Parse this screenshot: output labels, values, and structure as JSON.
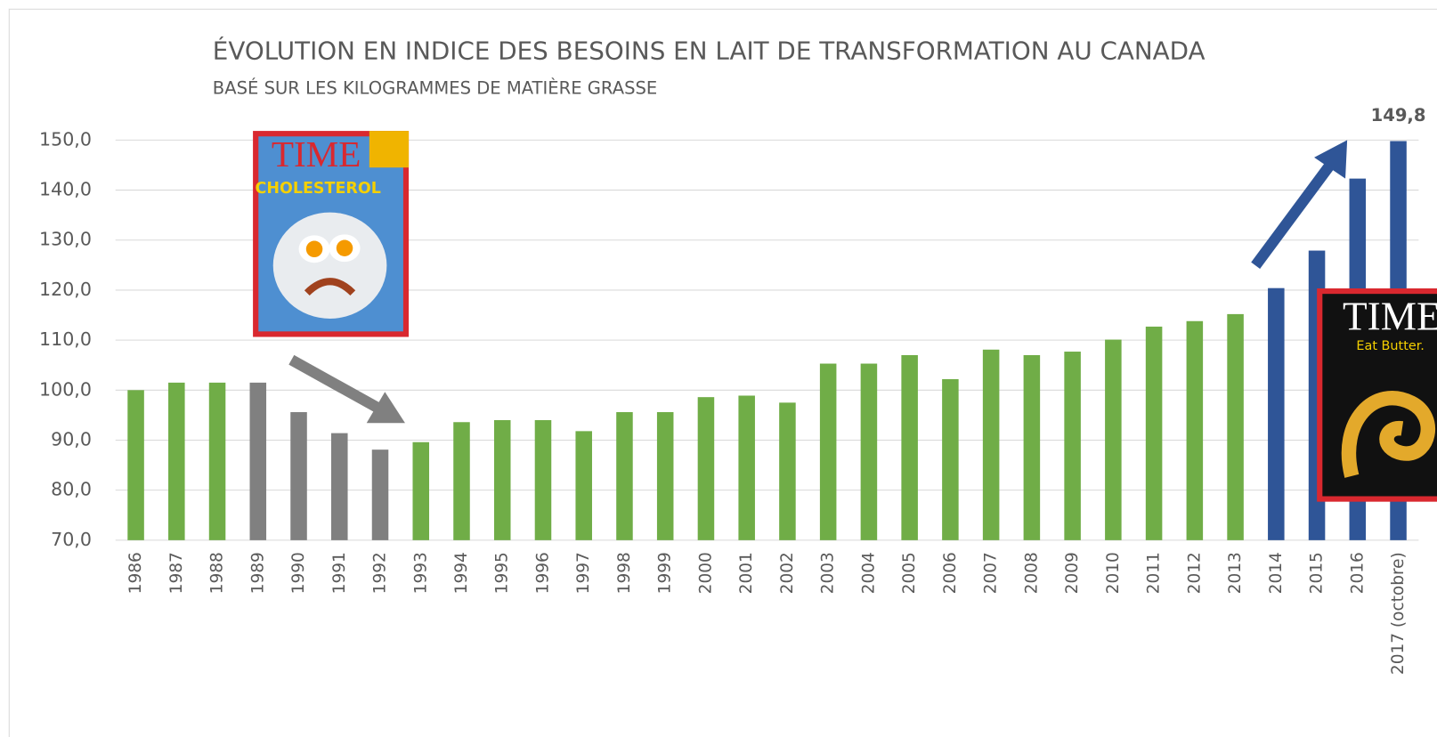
{
  "chart_data": {
    "type": "bar",
    "title": "ÉVOLUTION EN INDICE DES BESOINS EN LAIT DE TRANSFORMATION AU CANADA",
    "subtitle": "BASÉ SUR LES KILOGRAMMES  DE MATIÈRE GRASSE",
    "categories": [
      "1986",
      "1987",
      "1988",
      "1989",
      "1990",
      "1991",
      "1992",
      "1993",
      "1994",
      "1995",
      "1996",
      "1997",
      "1998",
      "1999",
      "2000",
      "2001",
      "2002",
      "2003",
      "2004",
      "2005",
      "2006",
      "2007",
      "2008",
      "2009",
      "2010",
      "2011",
      "2012",
      "2013",
      "2014",
      "2015",
      "2016",
      "2017 (octobre)"
    ],
    "values": [
      100.0,
      101.5,
      101.5,
      101.5,
      95.6,
      91.4,
      88.1,
      89.6,
      93.6,
      94.0,
      94.0,
      91.8,
      95.6,
      95.6,
      98.6,
      98.9,
      97.5,
      105.3,
      105.3,
      107.0,
      102.2,
      108.1,
      107.0,
      107.7,
      110.1,
      112.7,
      113.8,
      115.2,
      120.4,
      127.9,
      142.3,
      149.8
    ],
    "value_labels": [
      null,
      null,
      null,
      null,
      null,
      null,
      null,
      null,
      null,
      null,
      null,
      null,
      null,
      null,
      null,
      null,
      null,
      null,
      null,
      null,
      null,
      null,
      null,
      null,
      null,
      null,
      null,
      null,
      null,
      null,
      null,
      "149,8"
    ],
    "colors": [
      "#70ad47",
      "#70ad47",
      "#70ad47",
      "#808080",
      "#808080",
      "#808080",
      "#808080",
      "#70ad47",
      "#70ad47",
      "#70ad47",
      "#70ad47",
      "#70ad47",
      "#70ad47",
      "#70ad47",
      "#70ad47",
      "#70ad47",
      "#70ad47",
      "#70ad47",
      "#70ad47",
      "#70ad47",
      "#70ad47",
      "#70ad47",
      "#70ad47",
      "#70ad47",
      "#70ad47",
      "#70ad47",
      "#70ad47",
      "#70ad47",
      "#2f5597",
      "#2f5597",
      "#2f5597",
      "#2f5597"
    ],
    "ylim": [
      70,
      150
    ],
    "yticks": [
      {
        "value": 70,
        "label": "70,0"
      },
      {
        "value": 80,
        "label": "80,0"
      },
      {
        "value": 90,
        "label": "90,0"
      },
      {
        "value": 100,
        "label": "100,0"
      },
      {
        "value": 110,
        "label": "110,0"
      },
      {
        "value": 120,
        "label": "120,0"
      },
      {
        "value": 130,
        "label": "130,0"
      },
      {
        "value": 140,
        "label": "140,0"
      },
      {
        "value": 150,
        "label": "150,0"
      }
    ],
    "grid": true,
    "annotations": [
      {
        "masthead": "TIME",
        "headline": "CHOLESTEROL"
      },
      {
        "masthead": "TIME",
        "headline": "Eat Butter."
      }
    ]
  }
}
